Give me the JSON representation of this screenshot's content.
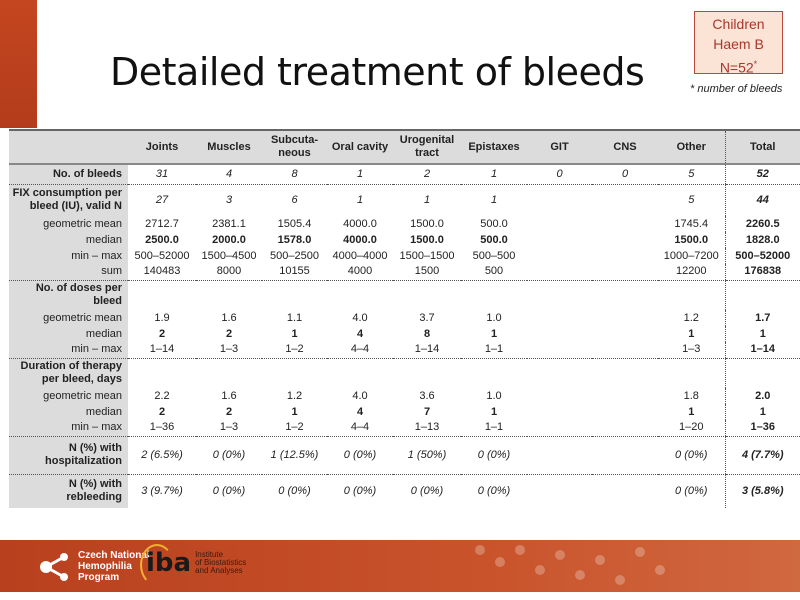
{
  "title": "Detailed treatment of bleeds",
  "badge": {
    "line1": "Children",
    "line2": "Haem B",
    "line3": "N=52",
    "mark": "*"
  },
  "footnote": "* number of bleeds",
  "table": {
    "columns": [
      "",
      "Joints",
      "Muscles",
      "Subcuta-neous",
      "Oral cavity",
      "Urogenital tract",
      "Epistaxes",
      "GIT",
      "CNS",
      "Other",
      "Total"
    ],
    "rows": [
      {
        "label": "No. of bleeds",
        "type": "sec",
        "style": "it",
        "sep": true,
        "values": [
          "31",
          "4",
          "8",
          "1",
          "2",
          "1",
          "0",
          "0",
          "5",
          "52"
        ]
      },
      {
        "label": "FIX consumption per bleed (IU), valid N",
        "type": "sec",
        "style": "it",
        "values": [
          "27",
          "3",
          "6",
          "1",
          "1",
          "1",
          "",
          "",
          "5",
          "44"
        ]
      },
      {
        "label": "geometric mean",
        "type": "sub",
        "style": "",
        "values": [
          "2712.7",
          "2381.1",
          "1505.4",
          "4000.0",
          "1500.0",
          "500.0",
          "",
          "",
          "1745.4",
          "2260.5"
        ]
      },
      {
        "label": "median",
        "type": "sub",
        "style": "bd",
        "values": [
          "2500.0",
          "2000.0",
          "1578.0",
          "4000.0",
          "1500.0",
          "500.0",
          "",
          "",
          "1500.0",
          "1828.0"
        ]
      },
      {
        "label": "min – max",
        "type": "sub",
        "style": "",
        "values": [
          "500–52000",
          "1500–4500",
          "500–2500",
          "4000–4000",
          "1500–1500",
          "500–500",
          "",
          "",
          "1000–7200",
          "500–52000"
        ]
      },
      {
        "label": "sum",
        "type": "sub",
        "style": "",
        "sep": true,
        "values": [
          "140483",
          "8000",
          "10155",
          "4000",
          "1500",
          "500",
          "",
          "",
          "12200",
          "176838"
        ]
      },
      {
        "label": "No. of doses per bleed",
        "type": "sec",
        "style": "",
        "values": [
          "",
          "",
          "",
          "",
          "",
          "",
          "",
          "",
          "",
          ""
        ]
      },
      {
        "label": "geometric mean",
        "type": "sub",
        "style": "",
        "values": [
          "1.9",
          "1.6",
          "1.1",
          "4.0",
          "3.7",
          "1.0",
          "",
          "",
          "1.2",
          "1.7"
        ]
      },
      {
        "label": "median",
        "type": "sub",
        "style": "bd",
        "values": [
          "2",
          "2",
          "1",
          "4",
          "8",
          "1",
          "",
          "",
          "1",
          "1"
        ]
      },
      {
        "label": "min – max",
        "type": "sub",
        "style": "",
        "sep": true,
        "values": [
          "1–14",
          "1–3",
          "1–2",
          "4–4",
          "1–14",
          "1–1",
          "",
          "",
          "1–3",
          "1–14"
        ]
      },
      {
        "label": "Duration of therapy per bleed, days",
        "type": "sec",
        "style": "",
        "values": [
          "",
          "",
          "",
          "",
          "",
          "",
          "",
          "",
          "",
          ""
        ]
      },
      {
        "label": "geometric mean",
        "type": "sub",
        "style": "",
        "values": [
          "2.2",
          "1.6",
          "1.2",
          "4.0",
          "3.6",
          "1.0",
          "",
          "",
          "1.8",
          "2.0"
        ]
      },
      {
        "label": "median",
        "type": "sub",
        "style": "bd",
        "values": [
          "2",
          "2",
          "1",
          "4",
          "7",
          "1",
          "",
          "",
          "1",
          "1"
        ]
      },
      {
        "label": "min – max",
        "type": "sub",
        "style": "",
        "sep": true,
        "values": [
          "1–36",
          "1–3",
          "1–2",
          "4–4",
          "1–13",
          "1–1",
          "",
          "",
          "1–20",
          "1–36"
        ]
      },
      {
        "label": "N (%) with hospitalization",
        "type": "sec",
        "style": "it",
        "sep": true,
        "values": [
          "2 (6.5%)",
          "0 (0%)",
          "1 (12.5%)",
          "0 (0%)",
          "1 (50%)",
          "0 (0%)",
          "",
          "",
          "0 (0%)",
          "4 (7.7%)"
        ]
      },
      {
        "label": "N (%) with rebleeding",
        "type": "sec",
        "style": "it",
        "values": [
          "3 (9.7%)",
          "0 (0%)",
          "0 (0%)",
          "0 (0%)",
          "0 (0%)",
          "0 (0%)",
          "",
          "",
          "0 (0%)",
          "3 (5.8%)"
        ]
      }
    ]
  },
  "footer": {
    "cnhp": [
      "Czech National",
      "Hemophilia",
      "Program"
    ],
    "iba_logo": "iba",
    "iba_text": [
      "Institute",
      "of Biostatistics",
      "and Analyses"
    ]
  },
  "colors": {
    "accent": "#c3461f",
    "badge_bg": "#fbe3d6",
    "badge_text": "#a8372c",
    "table_gray": "#dcdcdc"
  }
}
